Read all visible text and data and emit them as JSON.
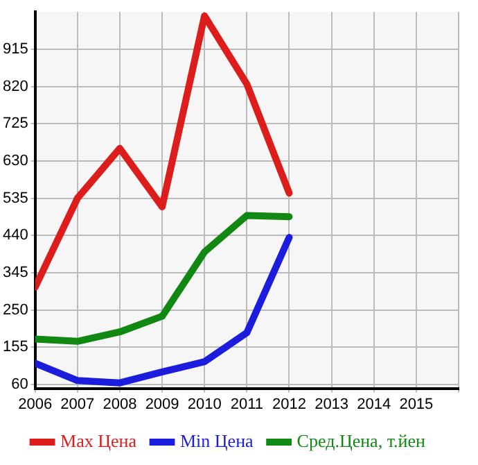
{
  "chart_data": {
    "type": "line",
    "x": [
      2006,
      2007,
      2008,
      2009,
      2010,
      2011,
      2012
    ],
    "series": [
      {
        "name": "Max Цена",
        "color": "#dd1c1c",
        "values": [
          308,
          535,
          662,
          513,
          1000,
          826,
          548
        ]
      },
      {
        "name": "Min Цена",
        "color": "#1c1cdd",
        "values": [
          114,
          70,
          64,
          92,
          118,
          192,
          435
        ]
      },
      {
        "name": "Сред.Цена, т.йен",
        "color": "#118811",
        "values": [
          176,
          170,
          194,
          234,
          398,
          491,
          488
        ]
      }
    ],
    "xlim": [
      2006,
      2016
    ],
    "xticks": [
      2006,
      2007,
      2008,
      2009,
      2010,
      2011,
      2012,
      2013,
      2014,
      2015,
      {
        "value": 2016,
        "label": null
      }
    ],
    "ylim": [
      50,
      1010
    ],
    "yticks": [
      60,
      155,
      250,
      345,
      440,
      535,
      630,
      725,
      820,
      915
    ],
    "grid": true,
    "legend": "bottom",
    "marker": "none",
    "line_style": "solid"
  }
}
